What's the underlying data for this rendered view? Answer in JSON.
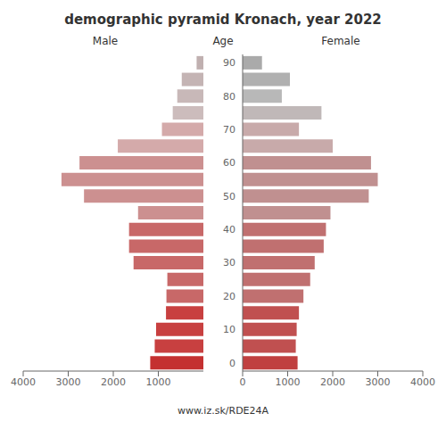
{
  "chart_data": {
    "type": "bar",
    "orientation": "horizontal",
    "title": "demographic pyramid Kronach, year 2022",
    "ylabel": "Age",
    "categories": [
      "90",
      null,
      "80",
      null,
      "70",
      null,
      "60",
      null,
      "50",
      null,
      "40",
      null,
      "30",
      null,
      "20",
      null,
      "10",
      null,
      "0"
    ],
    "series": [
      {
        "name": "Male",
        "colors": [
          "#c0b0b0",
          "#c4b4b4",
          "#c8b8b8",
          "#ccbcbc",
          "#d4aaaa",
          "#d4aaaa",
          "#cc9090",
          "#cc9090",
          "#cc9090",
          "#cc9090",
          "#c86868",
          "#c86868",
          "#c86868",
          "#c86868",
          "#c86868",
          "#c84040",
          "#c84040",
          "#c84040",
          "#c43030"
        ],
        "values": [
          150,
          480,
          580,
          680,
          920,
          1900,
          2750,
          3150,
          2650,
          1450,
          1650,
          1650,
          1550,
          800,
          820,
          830,
          1050,
          1080,
          1180
        ]
      },
      {
        "name": "Female",
        "colors": [
          "#aaaaaa",
          "#b0b0b0",
          "#b8b8b8",
          "#c0b8b8",
          "#c8aaaa",
          "#c8aaaa",
          "#c09090",
          "#c09090",
          "#c09090",
          "#c09090",
          "#c07070",
          "#c07070",
          "#c07070",
          "#c07070",
          "#c07070",
          "#c05050",
          "#c05050",
          "#c05050",
          "#c04040"
        ],
        "values": [
          430,
          1050,
          870,
          1750,
          1250,
          2000,
          2850,
          3000,
          2800,
          1950,
          1850,
          1800,
          1600,
          1500,
          1350,
          1250,
          1200,
          1180,
          1220
        ]
      }
    ],
    "xlim": [
      0,
      4000
    ],
    "xticks": [
      0,
      1000,
      2000,
      3000,
      4000
    ],
    "grid": false,
    "annotations": [
      "www.iz.sk/RDE24A"
    ]
  }
}
